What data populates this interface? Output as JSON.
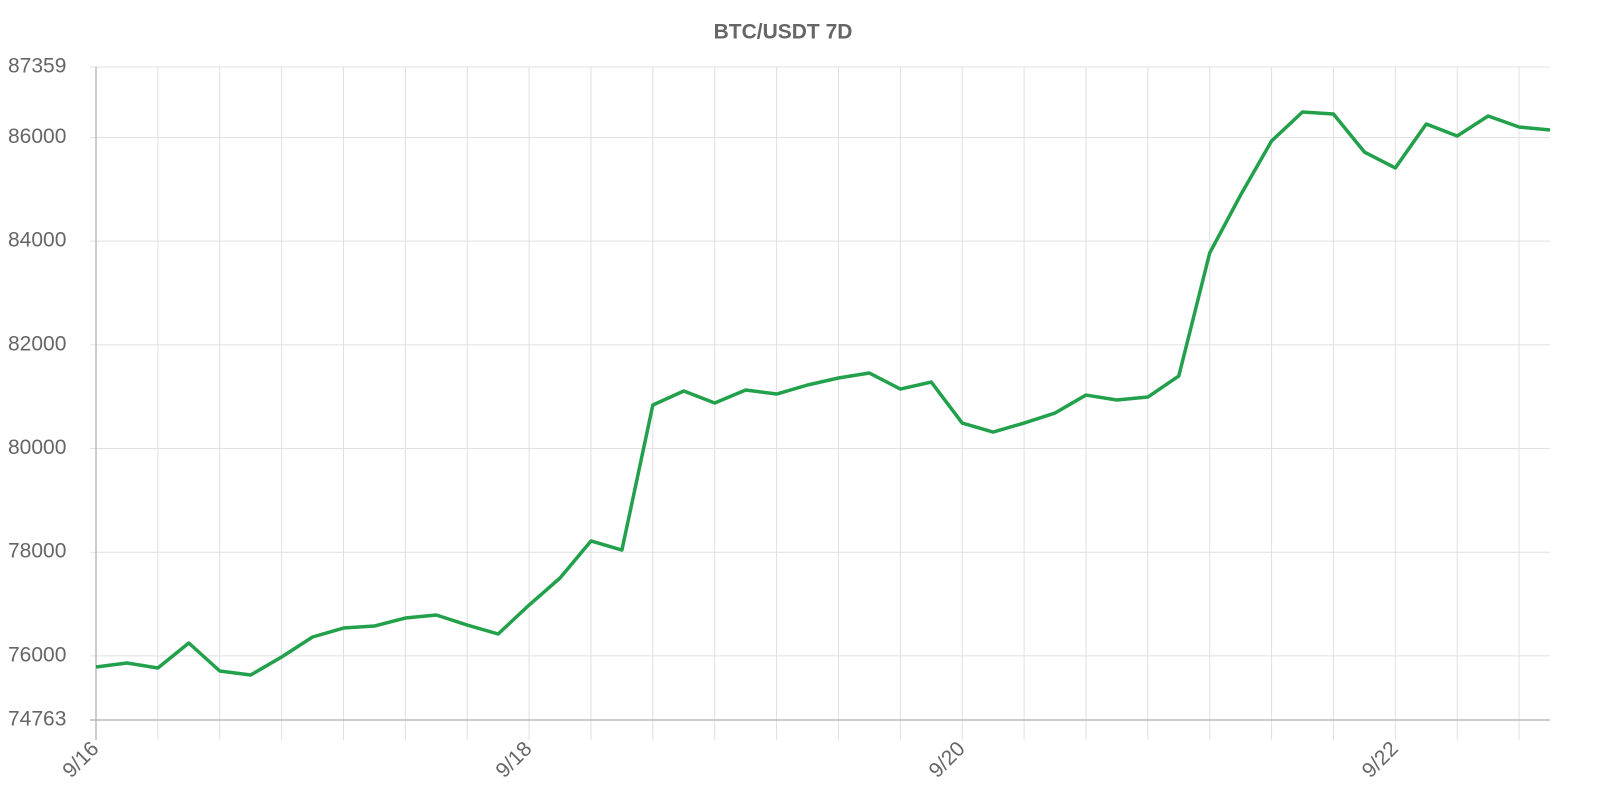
{
  "chart_data": {
    "type": "line",
    "title": "BTC/USDT 7D",
    "categories": [
      "9/16",
      null,
      null,
      null,
      null,
      null,
      null,
      null,
      null,
      null,
      null,
      null,
      null,
      null,
      "9/18",
      null,
      null,
      null,
      null,
      null,
      null,
      null,
      null,
      null,
      null,
      null,
      null,
      null,
      "9/20",
      null,
      null,
      null,
      null,
      null,
      null,
      null,
      null,
      null,
      null,
      null,
      null,
      null,
      "9/22",
      null,
      null,
      null,
      null,
      null
    ],
    "series": [
      {
        "name": "BTC/USDT",
        "color": "#22a04b",
        "values": [
          75785,
          75862,
          75766,
          76248,
          75708,
          75631,
          75978,
          76364,
          76537,
          76576,
          76730,
          76788,
          76595,
          76422,
          76981,
          77502,
          78216,
          78042,
          80839,
          81109,
          80878,
          81128,
          81051,
          81225,
          81360,
          81456,
          81147,
          81282,
          80491,
          80318,
          80491,
          80684,
          81031,
          80935,
          80993,
          81398,
          83771,
          84890,
          85932,
          86491,
          86453,
          85719,
          85411,
          86260,
          86028,
          86414,
          86202,
          86144
        ]
      }
    ],
    "ylim": [
      74763,
      87359
    ],
    "yticks": [
      74763,
      76000,
      78000,
      80000,
      82000,
      84000,
      86000,
      87359
    ],
    "grid": true
  }
}
